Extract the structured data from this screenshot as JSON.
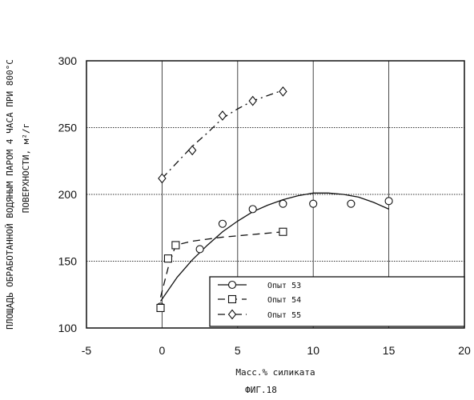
{
  "chart_data": {
    "type": "scatter",
    "caption": "ФИГ.18",
    "xlabel": "Масс.% силиката",
    "ylabel_line1": "ПЛОЩАДЬ ОБРАБОТАННОЙ ВОДЯНЫМ ПАРОМ 4 ЧАСА ПРИ 800°С",
    "ylabel_line2": "ПОВЕРХНОСТИ, м²/г",
    "xlim": [
      -5,
      20
    ],
    "ylim": [
      100,
      300
    ],
    "xticks": [
      "-5",
      "0",
      "5",
      "10",
      "15",
      "20"
    ],
    "yticks": [
      "100",
      "150",
      "200",
      "250",
      "300"
    ],
    "grid": true,
    "legend_position": "bottom-right",
    "series": [
      {
        "name": "Опыт 53",
        "marker": "circle",
        "line": "solid",
        "x": [
          -0.1,
          2.5,
          4,
          6,
          8,
          10,
          12.5,
          15
        ],
        "y": [
          116,
          159,
          178,
          189,
          193,
          193,
          193,
          195
        ],
        "fit_x": [
          -0.1,
          1,
          2,
          3,
          4,
          5,
          6,
          7,
          8,
          9,
          10,
          11,
          12,
          13,
          14,
          15
        ],
        "fit_y": [
          120,
          138,
          151,
          162,
          172,
          180,
          187,
          192,
          196,
          199,
          201,
          201,
          200,
          198,
          194,
          189
        ]
      },
      {
        "name": "Опыт 54",
        "marker": "square",
        "line": "dashed",
        "x": [
          -0.1,
          0.4,
          0.9,
          8
        ],
        "y": [
          115,
          152,
          162,
          172
        ],
        "fit_x": [
          -0.1,
          0.4,
          0.9,
          2,
          4,
          6,
          8
        ],
        "fit_y": [
          123,
          145,
          162,
          165,
          168,
          170,
          172
        ]
      },
      {
        "name": "Опыт 55",
        "marker": "diamond",
        "line": "dash-dot",
        "x": [
          0,
          2,
          4,
          6,
          8
        ],
        "y": [
          212,
          233,
          259,
          270,
          277
        ],
        "fit_x": [
          0,
          1,
          2,
          3,
          4,
          5,
          6,
          7,
          8
        ],
        "fit_y": [
          212,
          224,
          236,
          246,
          257,
          264,
          270,
          274,
          278
        ]
      }
    ]
  }
}
